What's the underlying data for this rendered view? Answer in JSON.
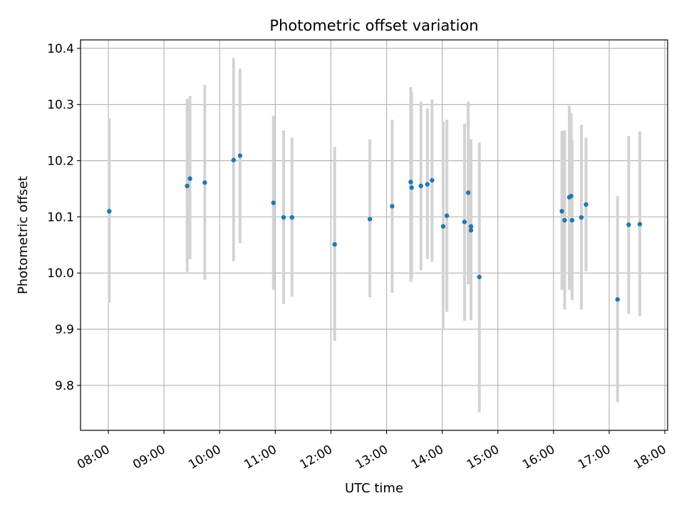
{
  "chart_data": {
    "type": "scatter",
    "title": "Photometric offset variation",
    "xlabel": "UTC time",
    "ylabel": "Photometric offset",
    "x_ticks": [
      "08:00",
      "09:00",
      "10:00",
      "11:00",
      "12:00",
      "13:00",
      "14:00",
      "15:00",
      "16:00",
      "17:00",
      "18:00"
    ],
    "y_ticks": [
      "9.8",
      "9.9",
      "10.0",
      "10.1",
      "10.2",
      "10.3",
      "10.4"
    ],
    "xlim": [
      "07:30",
      "18:03"
    ],
    "ylim": [
      9.72,
      10.415
    ],
    "grid": true,
    "colors": {
      "point": "#1f77b4",
      "errorbar": "#d3d3d3",
      "grid": "#b0b0b0"
    },
    "points": [
      {
        "x": "08:01",
        "y": 10.11,
        "lo": 9.947,
        "hi": 10.275
      },
      {
        "x": "09:25",
        "y": 10.155,
        "lo": 10.002,
        "hi": 10.31
      },
      {
        "x": "09:28",
        "y": 10.168,
        "lo": 10.025,
        "hi": 10.315
      },
      {
        "x": "09:44",
        "y": 10.161,
        "lo": 9.988,
        "hi": 10.335
      },
      {
        "x": "10:15",
        "y": 10.201,
        "lo": 10.021,
        "hi": 10.383
      },
      {
        "x": "10:22",
        "y": 10.209,
        "lo": 10.053,
        "hi": 10.364
      },
      {
        "x": "10:58",
        "y": 10.125,
        "lo": 9.97,
        "hi": 10.28
      },
      {
        "x": "11:09",
        "y": 10.099,
        "lo": 9.945,
        "hi": 10.254
      },
      {
        "x": "11:18",
        "y": 10.099,
        "lo": 9.958,
        "hi": 10.241
      },
      {
        "x": "12:04",
        "y": 10.051,
        "lo": 9.879,
        "hi": 10.225
      },
      {
        "x": "12:42",
        "y": 10.096,
        "lo": 9.957,
        "hi": 10.238
      },
      {
        "x": "13:06",
        "y": 10.119,
        "lo": 9.965,
        "hi": 10.273
      },
      {
        "x": "13:26",
        "y": 10.162,
        "lo": 9.984,
        "hi": 10.331
      },
      {
        "x": "13:27",
        "y": 10.152,
        "lo": 9.99,
        "hi": 10.322
      },
      {
        "x": "13:37",
        "y": 10.155,
        "lo": 10.005,
        "hi": 10.305
      },
      {
        "x": "13:44",
        "y": 10.158,
        "lo": 10.025,
        "hi": 10.293
      },
      {
        "x": "13:49",
        "y": 10.165,
        "lo": 10.02,
        "hi": 10.309
      },
      {
        "x": "14:01",
        "y": 10.083,
        "lo": 9.898,
        "hi": 10.27
      },
      {
        "x": "14:05",
        "y": 10.102,
        "lo": 9.931,
        "hi": 10.273
      },
      {
        "x": "14:24",
        "y": 10.091,
        "lo": 9.915,
        "hi": 10.266
      },
      {
        "x": "14:28",
        "y": 10.143,
        "lo": 9.98,
        "hi": 10.305
      },
      {
        "x": "14:31",
        "y": 10.076,
        "lo": 9.916,
        "hi": 10.238
      },
      {
        "x": "14:31",
        "y": 10.083,
        "lo": 9.992,
        "hi": 10.172
      },
      {
        "x": "14:40",
        "y": 9.993,
        "lo": 9.752,
        "hi": 10.232
      },
      {
        "x": "16:09",
        "y": 10.11,
        "lo": 9.97,
        "hi": 10.253
      },
      {
        "x": "16:12",
        "y": 10.094,
        "lo": 9.935,
        "hi": 10.254
      },
      {
        "x": "16:17",
        "y": 10.135,
        "lo": 9.97,
        "hi": 10.298
      },
      {
        "x": "16:19",
        "y": 10.137,
        "lo": 9.975,
        "hi": 10.285
      },
      {
        "x": "16:20",
        "y": 10.094,
        "lo": 9.952,
        "hi": 10.238
      },
      {
        "x": "16:30",
        "y": 10.099,
        "lo": 9.935,
        "hi": 10.264
      },
      {
        "x": "16:35",
        "y": 10.122,
        "lo": 10.003,
        "hi": 10.241
      },
      {
        "x": "17:09",
        "y": 9.953,
        "lo": 9.77,
        "hi": 10.137
      },
      {
        "x": "17:21",
        "y": 10.086,
        "lo": 9.927,
        "hi": 10.244
      },
      {
        "x": "17:33",
        "y": 10.087,
        "lo": 9.923,
        "hi": 10.252
      }
    ]
  }
}
